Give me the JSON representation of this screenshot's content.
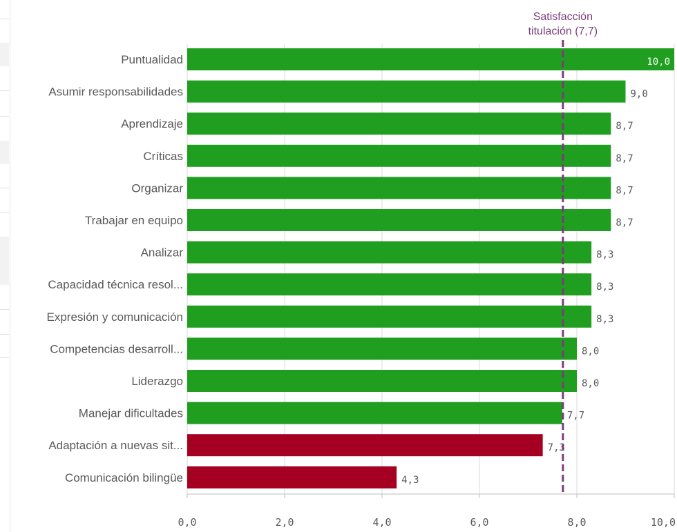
{
  "chart_data": {
    "type": "bar",
    "orientation": "horizontal",
    "categories": [
      "Puntualidad",
      "Asumir responsabilidades",
      "Aprendizaje",
      "Críticas",
      "Organizar",
      "Trabajar en equipo",
      "Analizar",
      "Capacidad técnica resol...",
      "Expresión y comunicación",
      "Competencias desarroll...",
      "Liderazgo",
      "Manejar dificultades",
      "Adaptación a nuevas sit...",
      "Comunicación bilingüe"
    ],
    "values": [
      10.0,
      9.0,
      8.7,
      8.7,
      8.7,
      8.7,
      8.3,
      8.3,
      8.3,
      8.0,
      8.0,
      7.7,
      7.3,
      4.3
    ],
    "value_labels": [
      "10,0",
      "9,0",
      "8,7",
      "8,7",
      "8,7",
      "8,7",
      "8,3",
      "8,3",
      "8,3",
      "8,0",
      "8,0",
      "7,7",
      "7,3",
      "4,3"
    ],
    "xlim": [
      0,
      10
    ],
    "xticks": [
      0,
      2,
      4,
      6,
      8,
      10
    ],
    "xtick_labels": [
      "0,0",
      "2,0",
      "4,0",
      "6,0",
      "8,0",
      "10,0"
    ],
    "grid": true,
    "reference_line": {
      "value": 7.7,
      "label_lines": [
        "Satisfacción",
        "titulación (7,7)"
      ],
      "color": "#7b3b7b",
      "style": "dashed"
    },
    "colors": {
      "above": "#1f9e1f",
      "below": "#a50021"
    },
    "title": "",
    "xlabel": "",
    "ylabel": ""
  }
}
